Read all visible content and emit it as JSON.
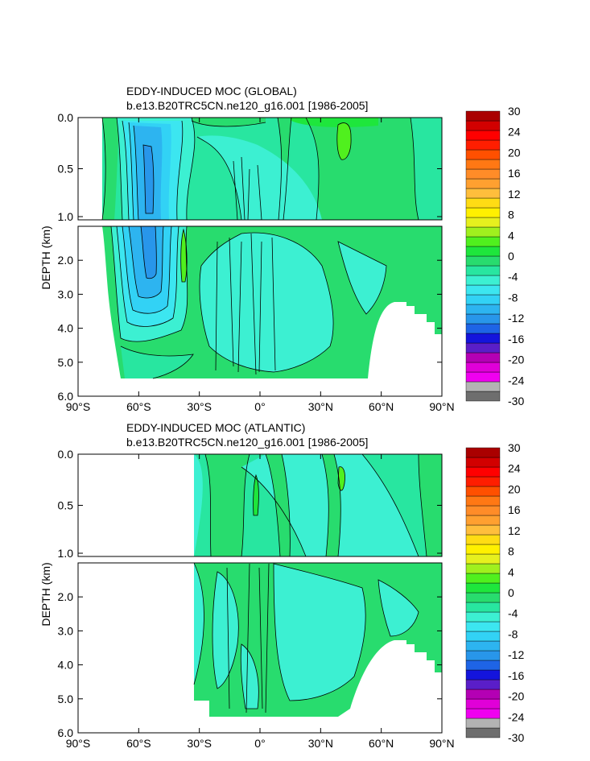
{
  "colors": {
    "background": "#ffffff",
    "land": "#ffffff",
    "contour_line": "#000000",
    "colorbar": [
      "#6e6e6e",
      "#b3b3b3",
      "#f000f0",
      "#e000d8",
      "#b400b4",
      "#5a1ec8",
      "#1414dc",
      "#1e64e6",
      "#2896ea",
      "#2db4f0",
      "#32d2f5",
      "#3ce6f0",
      "#3cf0d2",
      "#28e6a0",
      "#28dc6e",
      "#1ee63c",
      "#50f01e",
      "#a0f01e",
      "#e6f01e",
      "#fff000",
      "#ffdc14",
      "#ffbe3c",
      "#ffa030",
      "#ff8c28",
      "#ff7814",
      "#ff5000",
      "#ff1e00",
      "#ff0000",
      "#d20000",
      "#aa0000"
    ],
    "fill_levels": {
      "n14": "#2896ea",
      "n10": "#2db4f0",
      "n6": "#32d2f5",
      "n3": "#3ce6f0",
      "n1": "#3cf0d2",
      "z": "#28e6a0",
      "p1": "#28dc6e",
      "p3": "#1ee63c",
      "p5": "#50f01e"
    }
  },
  "chart_data": [
    {
      "type": "contour",
      "title": "EDDY-INDUCED MOC (GLOBAL)",
      "subtitle": "b.e13.B20TRC5CN.ne120_g16.001 [1986-2005]",
      "xlabel": "",
      "ylabel": "DEPTH (km)",
      "x_range": [
        -90,
        90
      ],
      "x_ticks": [
        "90°S",
        "60°S",
        "30°S",
        "0°",
        "30°N",
        "60°N",
        "90°N"
      ],
      "y_upper_range_km": [
        0.0,
        1.0
      ],
      "y_upper_ticks": [
        "0.0",
        "0.5",
        "1.0"
      ],
      "y_lower_range_km": [
        1.0,
        6.0
      ],
      "y_lower_ticks": [
        "2.0",
        "3.0",
        "4.0",
        "5.0",
        "6.0"
      ],
      "colorbar_labels": [
        "30",
        "24",
        "20",
        "16",
        "12",
        "8",
        "4",
        "0",
        "-4",
        "-8",
        "-12",
        "-16",
        "-20",
        "-24",
        "-30"
      ],
      "extrema": [
        {
          "name": "southern-ocean-minimum",
          "lat": -50,
          "depth_km": 0.6,
          "value": -14
        },
        {
          "name": "north-atlantic-maximum",
          "lat": 40,
          "depth_km": 0.2,
          "value": 5
        }
      ]
    },
    {
      "type": "contour",
      "title": "EDDY-INDUCED MOC (ATLANTIC)",
      "subtitle": "b.e13.B20TRC5CN.ne120_g16.001 [1986-2005]",
      "xlabel": "",
      "ylabel": "DEPTH (km)",
      "x_range": [
        -90,
        90
      ],
      "x_ticks": [
        "90°S",
        "60°S",
        "30°S",
        "0°",
        "30°N",
        "60°N",
        "90°N"
      ],
      "y_upper_range_km": [
        0.0,
        1.0
      ],
      "y_upper_ticks": [
        "0.0",
        "0.5",
        "1.0"
      ],
      "y_lower_range_km": [
        1.0,
        6.0
      ],
      "y_lower_ticks": [
        "2.0",
        "3.0",
        "4.0",
        "5.0",
        "6.0"
      ],
      "colorbar_labels": [
        "30",
        "24",
        "20",
        "16",
        "12",
        "8",
        "4",
        "0",
        "-4",
        "-8",
        "-12",
        "-16",
        "-20",
        "-24",
        "-30"
      ],
      "extrema": [
        {
          "name": "north-atlantic-maximum",
          "lat": 40,
          "depth_km": 0.2,
          "value": 5
        }
      ]
    }
  ]
}
